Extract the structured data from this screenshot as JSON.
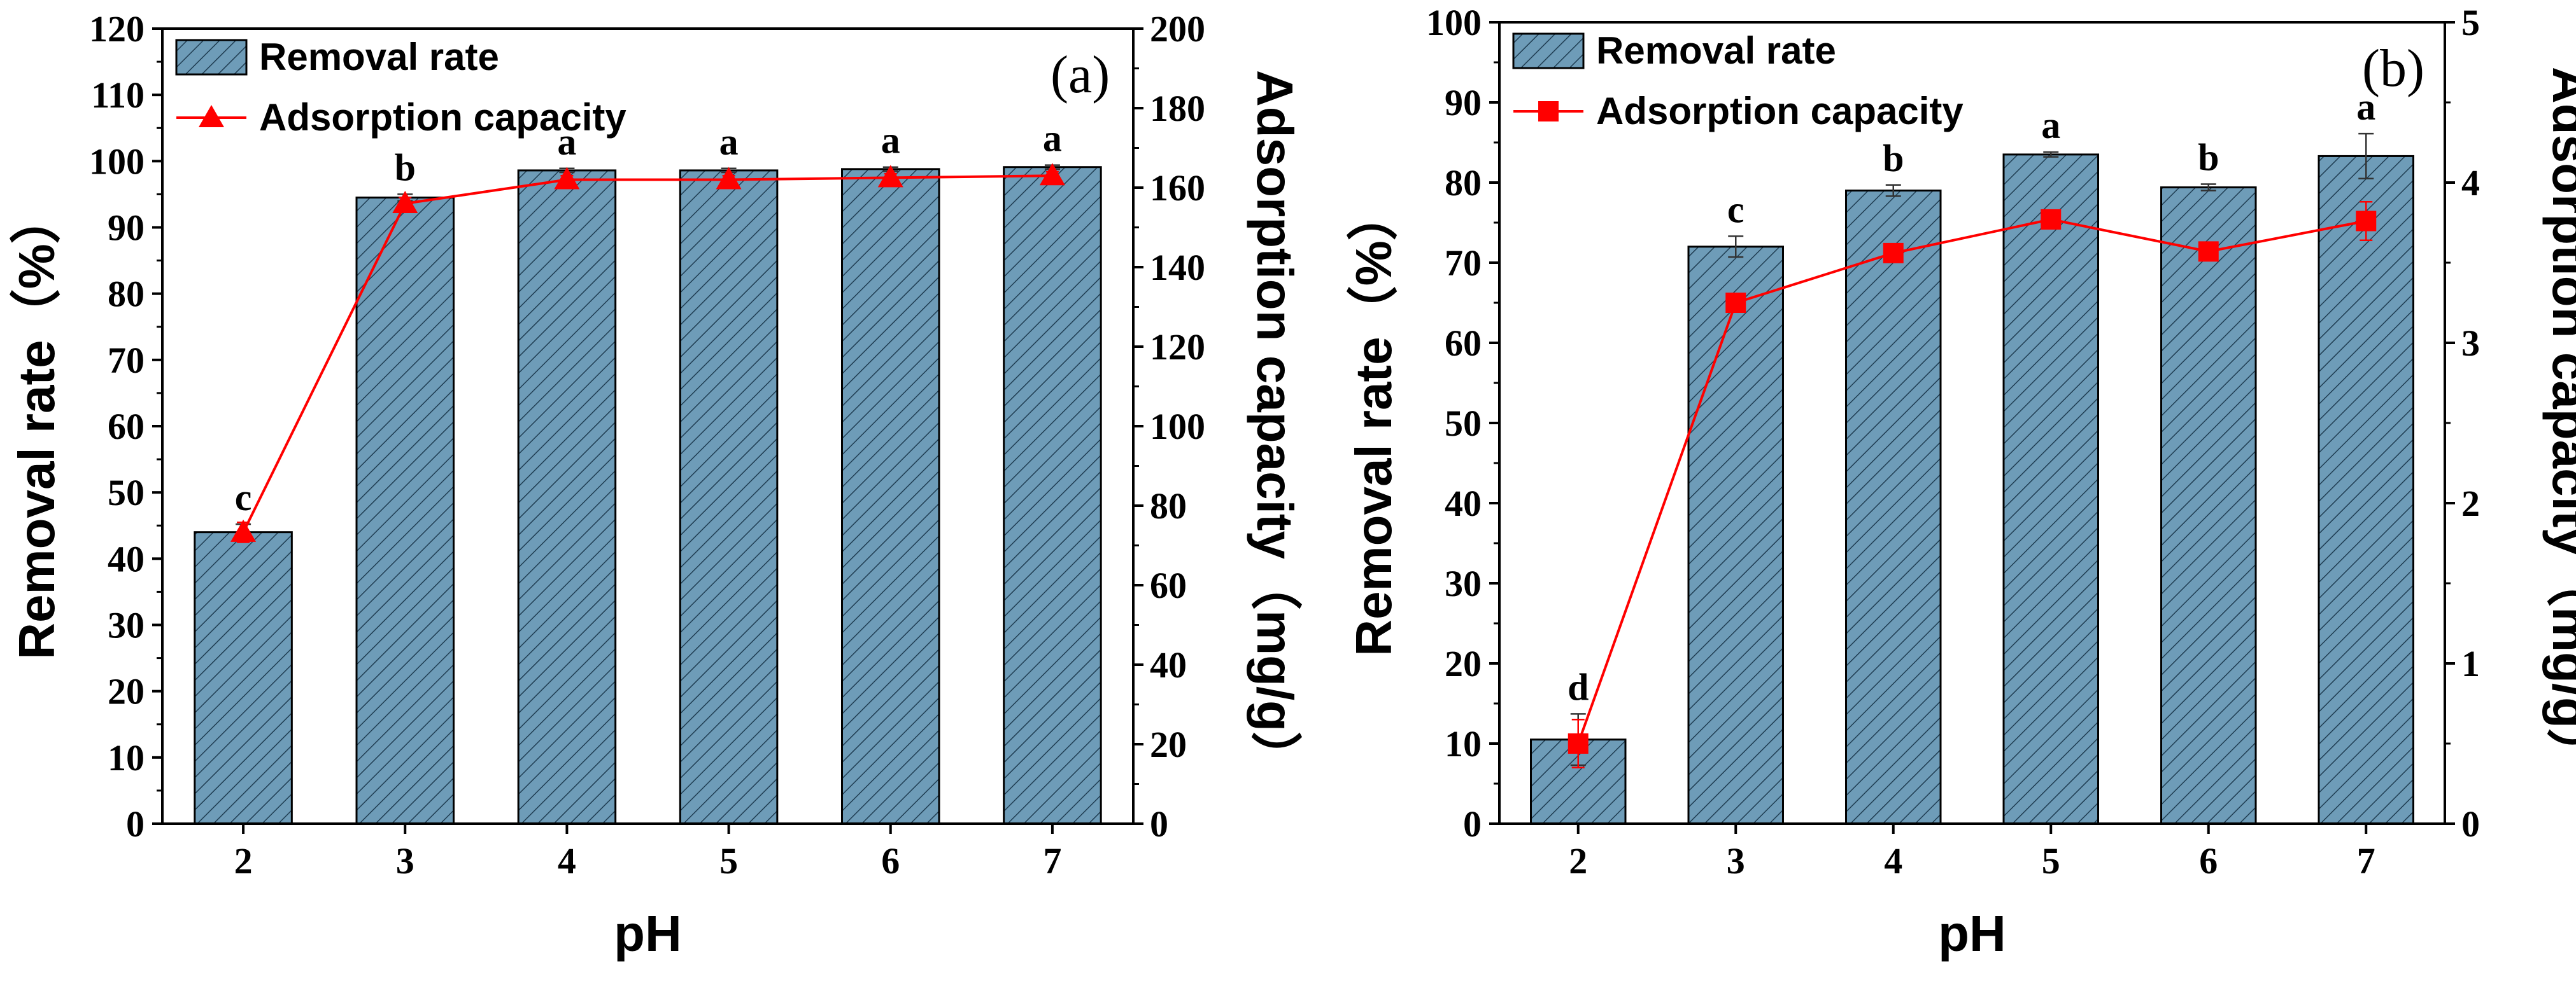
{
  "chart_data": [
    {
      "type": "bar",
      "panel_label": "(a)",
      "categories": [
        "2",
        "3",
        "4",
        "5",
        "6",
        "7"
      ],
      "xlabel": "pH",
      "ylabel": "Removal rate（%）",
      "y2label": "Adsorption capacity（mg/g）",
      "ylim": [
        0,
        120
      ],
      "y2lim": [
        0,
        200
      ],
      "yticks": [
        "0",
        "10",
        "20",
        "30",
        "40",
        "50",
        "60",
        "70",
        "80",
        "90",
        "100",
        "110",
        "120"
      ],
      "y2ticks": [
        "0",
        "20",
        "40",
        "60",
        "80",
        "100",
        "120",
        "140",
        "160",
        "180",
        "200"
      ],
      "series": [
        {
          "name": "Removal rate",
          "kind": "bar",
          "axis": "left",
          "values": [
            44.0,
            94.5,
            98.6,
            98.6,
            98.8,
            99.1
          ],
          "errors": [
            1.2,
            0.5,
            0.3,
            0.3,
            0.3,
            0.3
          ]
        },
        {
          "name": "Adsorption capacity",
          "kind": "line",
          "marker": "triangle",
          "axis": "right",
          "values": [
            73.3,
            156.0,
            162.0,
            162.0,
            162.5,
            163.0
          ],
          "errors": [
            2.5,
            1.5,
            1.0,
            1.0,
            1.0,
            1.0
          ]
        }
      ],
      "significance": [
        "c",
        "b",
        "a",
        "a",
        "a",
        "a"
      ],
      "legend_location": "top-left",
      "colors": {
        "bar_fill": "#6E9CB8",
        "line": "#FF0000"
      }
    },
    {
      "type": "bar",
      "panel_label": "(b)",
      "categories": [
        "2",
        "3",
        "4",
        "5",
        "6",
        "7"
      ],
      "xlabel": "pH",
      "ylabel": "Removal rate（%）",
      "y2label": "Adsorption capacity（mg/g）",
      "ylim": [
        0,
        100
      ],
      "y2lim": [
        0,
        5
      ],
      "yticks": [
        "0",
        "10",
        "20",
        "30",
        "40",
        "50",
        "60",
        "70",
        "80",
        "90",
        "100"
      ],
      "y2ticks": [
        "0",
        "1",
        "2",
        "3",
        "4",
        "5"
      ],
      "series": [
        {
          "name": "Removal rate",
          "kind": "bar",
          "axis": "left",
          "values": [
            10.5,
            72.0,
            79.0,
            83.5,
            79.4,
            83.3
          ],
          "errors": [
            3.2,
            1.3,
            0.7,
            0.3,
            0.4,
            2.8
          ]
        },
        {
          "name": "Adsorption capacity",
          "kind": "line",
          "marker": "square",
          "axis": "right",
          "values": [
            0.5,
            3.25,
            3.56,
            3.77,
            3.57,
            3.76
          ],
          "errors": [
            0.15,
            0.05,
            0.03,
            0.02,
            0.03,
            0.12
          ]
        }
      ],
      "significance": [
        "d",
        "c",
        "b",
        "a",
        "b",
        "a"
      ],
      "legend_location": "top-left",
      "colors": {
        "bar_fill": "#6E9CB8",
        "line": "#FF0000"
      }
    }
  ]
}
